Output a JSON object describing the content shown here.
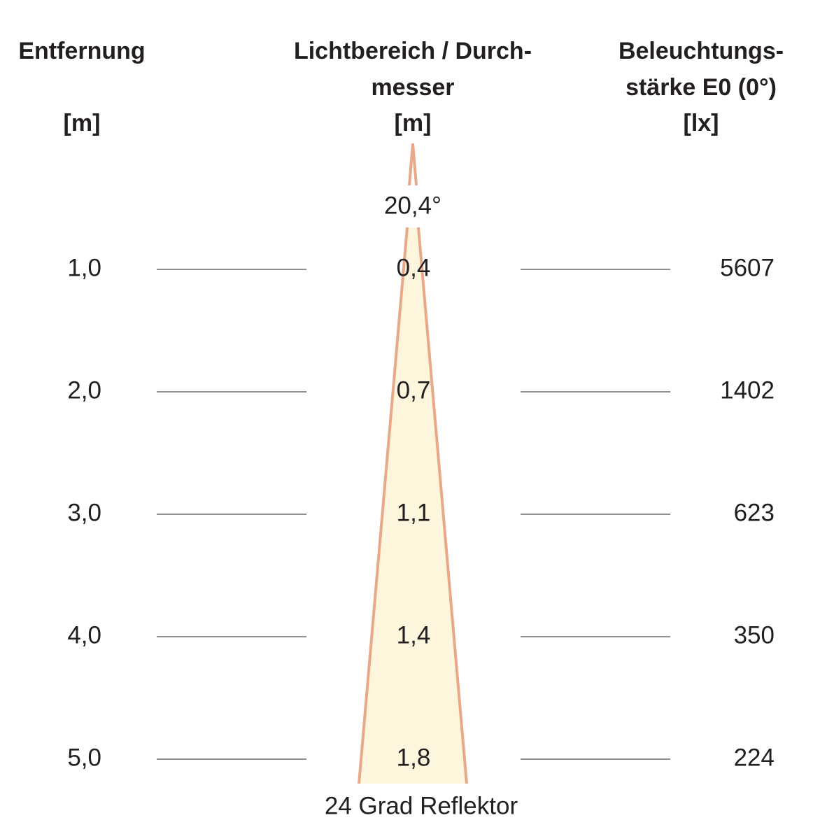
{
  "header": {
    "distance": [
      "Entfernung",
      "[m]"
    ],
    "diameter": [
      "Lichtbereich / Durch-",
      "messer",
      "[m]"
    ],
    "illuminance": [
      "Beleuchtungs-",
      "stärke E0 (0°)",
      "[lx]"
    ]
  },
  "angle": "20,4°",
  "rows": [
    [
      "1,0",
      "0,4",
      "5607"
    ],
    [
      "2,0",
      "0,7",
      "1402"
    ],
    [
      "3,0",
      "1,1",
      "623"
    ],
    [
      "4,0",
      "1,4",
      "350"
    ],
    [
      "5,0",
      "1,8",
      "224"
    ]
  ],
  "footer": "24 Grad Reflektor"
}
